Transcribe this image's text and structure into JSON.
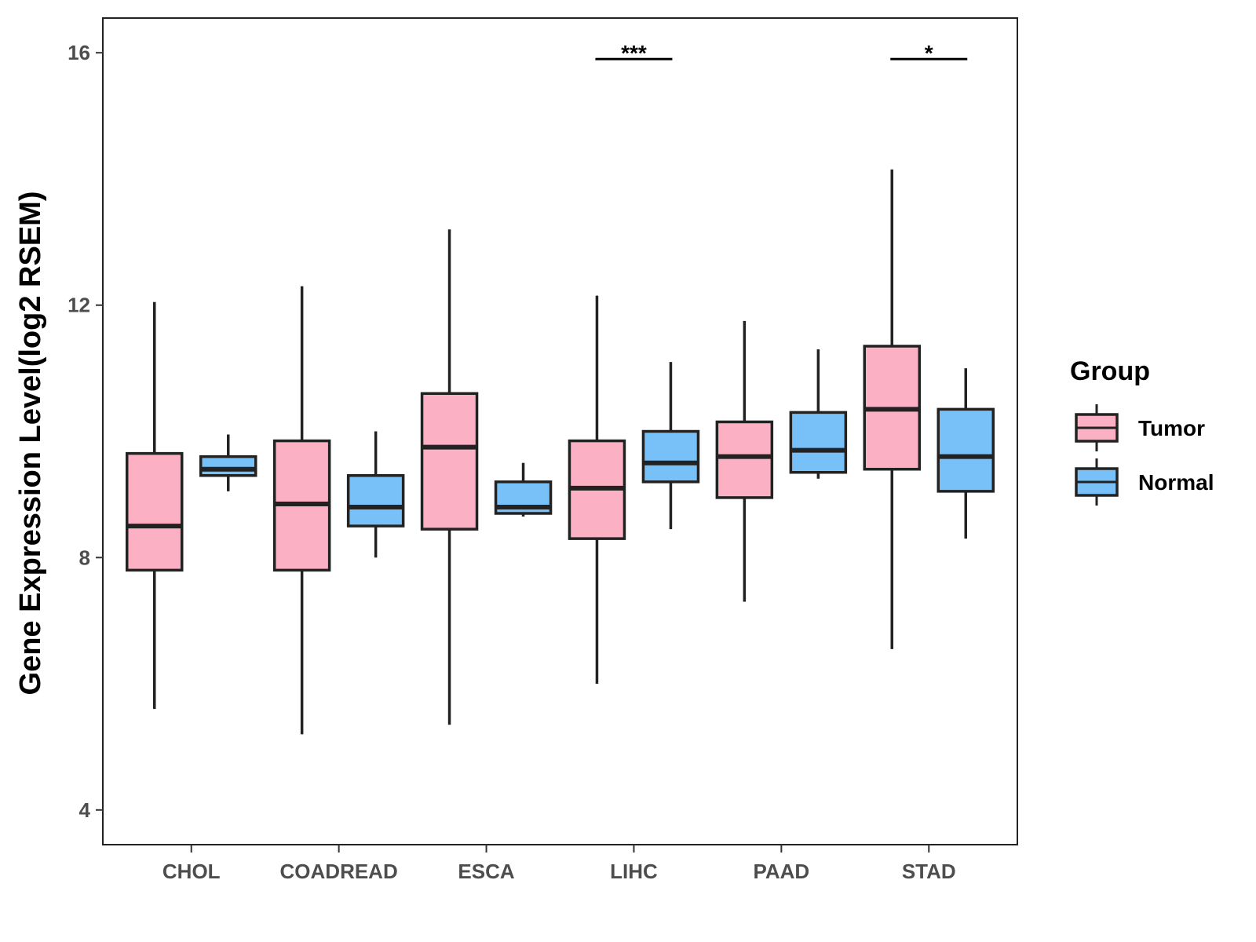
{
  "chart_data": {
    "type": "boxplot",
    "title": "",
    "xlabel": "",
    "ylabel": "Gene Expression Level(log2 RSEM)",
    "ylim": [
      3.45,
      16.55
    ],
    "yticks": [
      4,
      8,
      12,
      16
    ],
    "categories": [
      "CHOL",
      "COADREAD",
      "ESCA",
      "LIHC",
      "PAAD",
      "STAD"
    ],
    "legend": {
      "title": "Group",
      "position": "right",
      "entries": [
        "Tumor",
        "Normal"
      ]
    },
    "colors": {
      "Tumor": "#FBB0C3",
      "Normal": "#77C1F8",
      "outline": "#222222"
    },
    "series": [
      {
        "name": "Tumor",
        "boxes": [
          {
            "category": "CHOL",
            "min": 5.6,
            "q1": 7.8,
            "median": 8.5,
            "q3": 9.65,
            "max": 12.05
          },
          {
            "category": "COADREAD",
            "min": 5.2,
            "q1": 7.8,
            "median": 8.85,
            "q3": 9.85,
            "max": 12.3
          },
          {
            "category": "ESCA",
            "min": 5.35,
            "q1": 8.45,
            "median": 9.75,
            "q3": 10.6,
            "max": 13.2
          },
          {
            "category": "LIHC",
            "min": 6.0,
            "q1": 8.3,
            "median": 9.1,
            "q3": 9.85,
            "max": 12.15
          },
          {
            "category": "PAAD",
            "min": 7.3,
            "q1": 8.95,
            "median": 9.6,
            "q3": 10.15,
            "max": 11.75
          },
          {
            "category": "STAD",
            "min": 6.55,
            "q1": 9.4,
            "median": 10.35,
            "q3": 11.35,
            "max": 14.15
          }
        ]
      },
      {
        "name": "Normal",
        "boxes": [
          {
            "category": "CHOL",
            "min": 9.05,
            "q1": 9.3,
            "median": 9.4,
            "q3": 9.6,
            "max": 9.95
          },
          {
            "category": "COADREAD",
            "min": 8.0,
            "q1": 8.5,
            "median": 8.8,
            "q3": 9.3,
            "max": 10.0
          },
          {
            "category": "ESCA",
            "min": 8.65,
            "q1": 8.7,
            "median": 8.8,
            "q3": 9.2,
            "max": 9.5
          },
          {
            "category": "LIHC",
            "min": 8.45,
            "q1": 9.2,
            "median": 9.5,
            "q3": 10.0,
            "max": 11.1
          },
          {
            "category": "PAAD",
            "min": 9.25,
            "q1": 9.35,
            "median": 9.7,
            "q3": 10.3,
            "max": 11.3
          },
          {
            "category": "STAD",
            "min": 8.3,
            "q1": 9.05,
            "median": 9.6,
            "q3": 10.35,
            "max": 11.0
          }
        ]
      }
    ],
    "significance": [
      {
        "category": "LIHC",
        "label": "***",
        "y": 15.9
      },
      {
        "category": "STAD",
        "label": "*",
        "y": 15.9
      }
    ]
  }
}
